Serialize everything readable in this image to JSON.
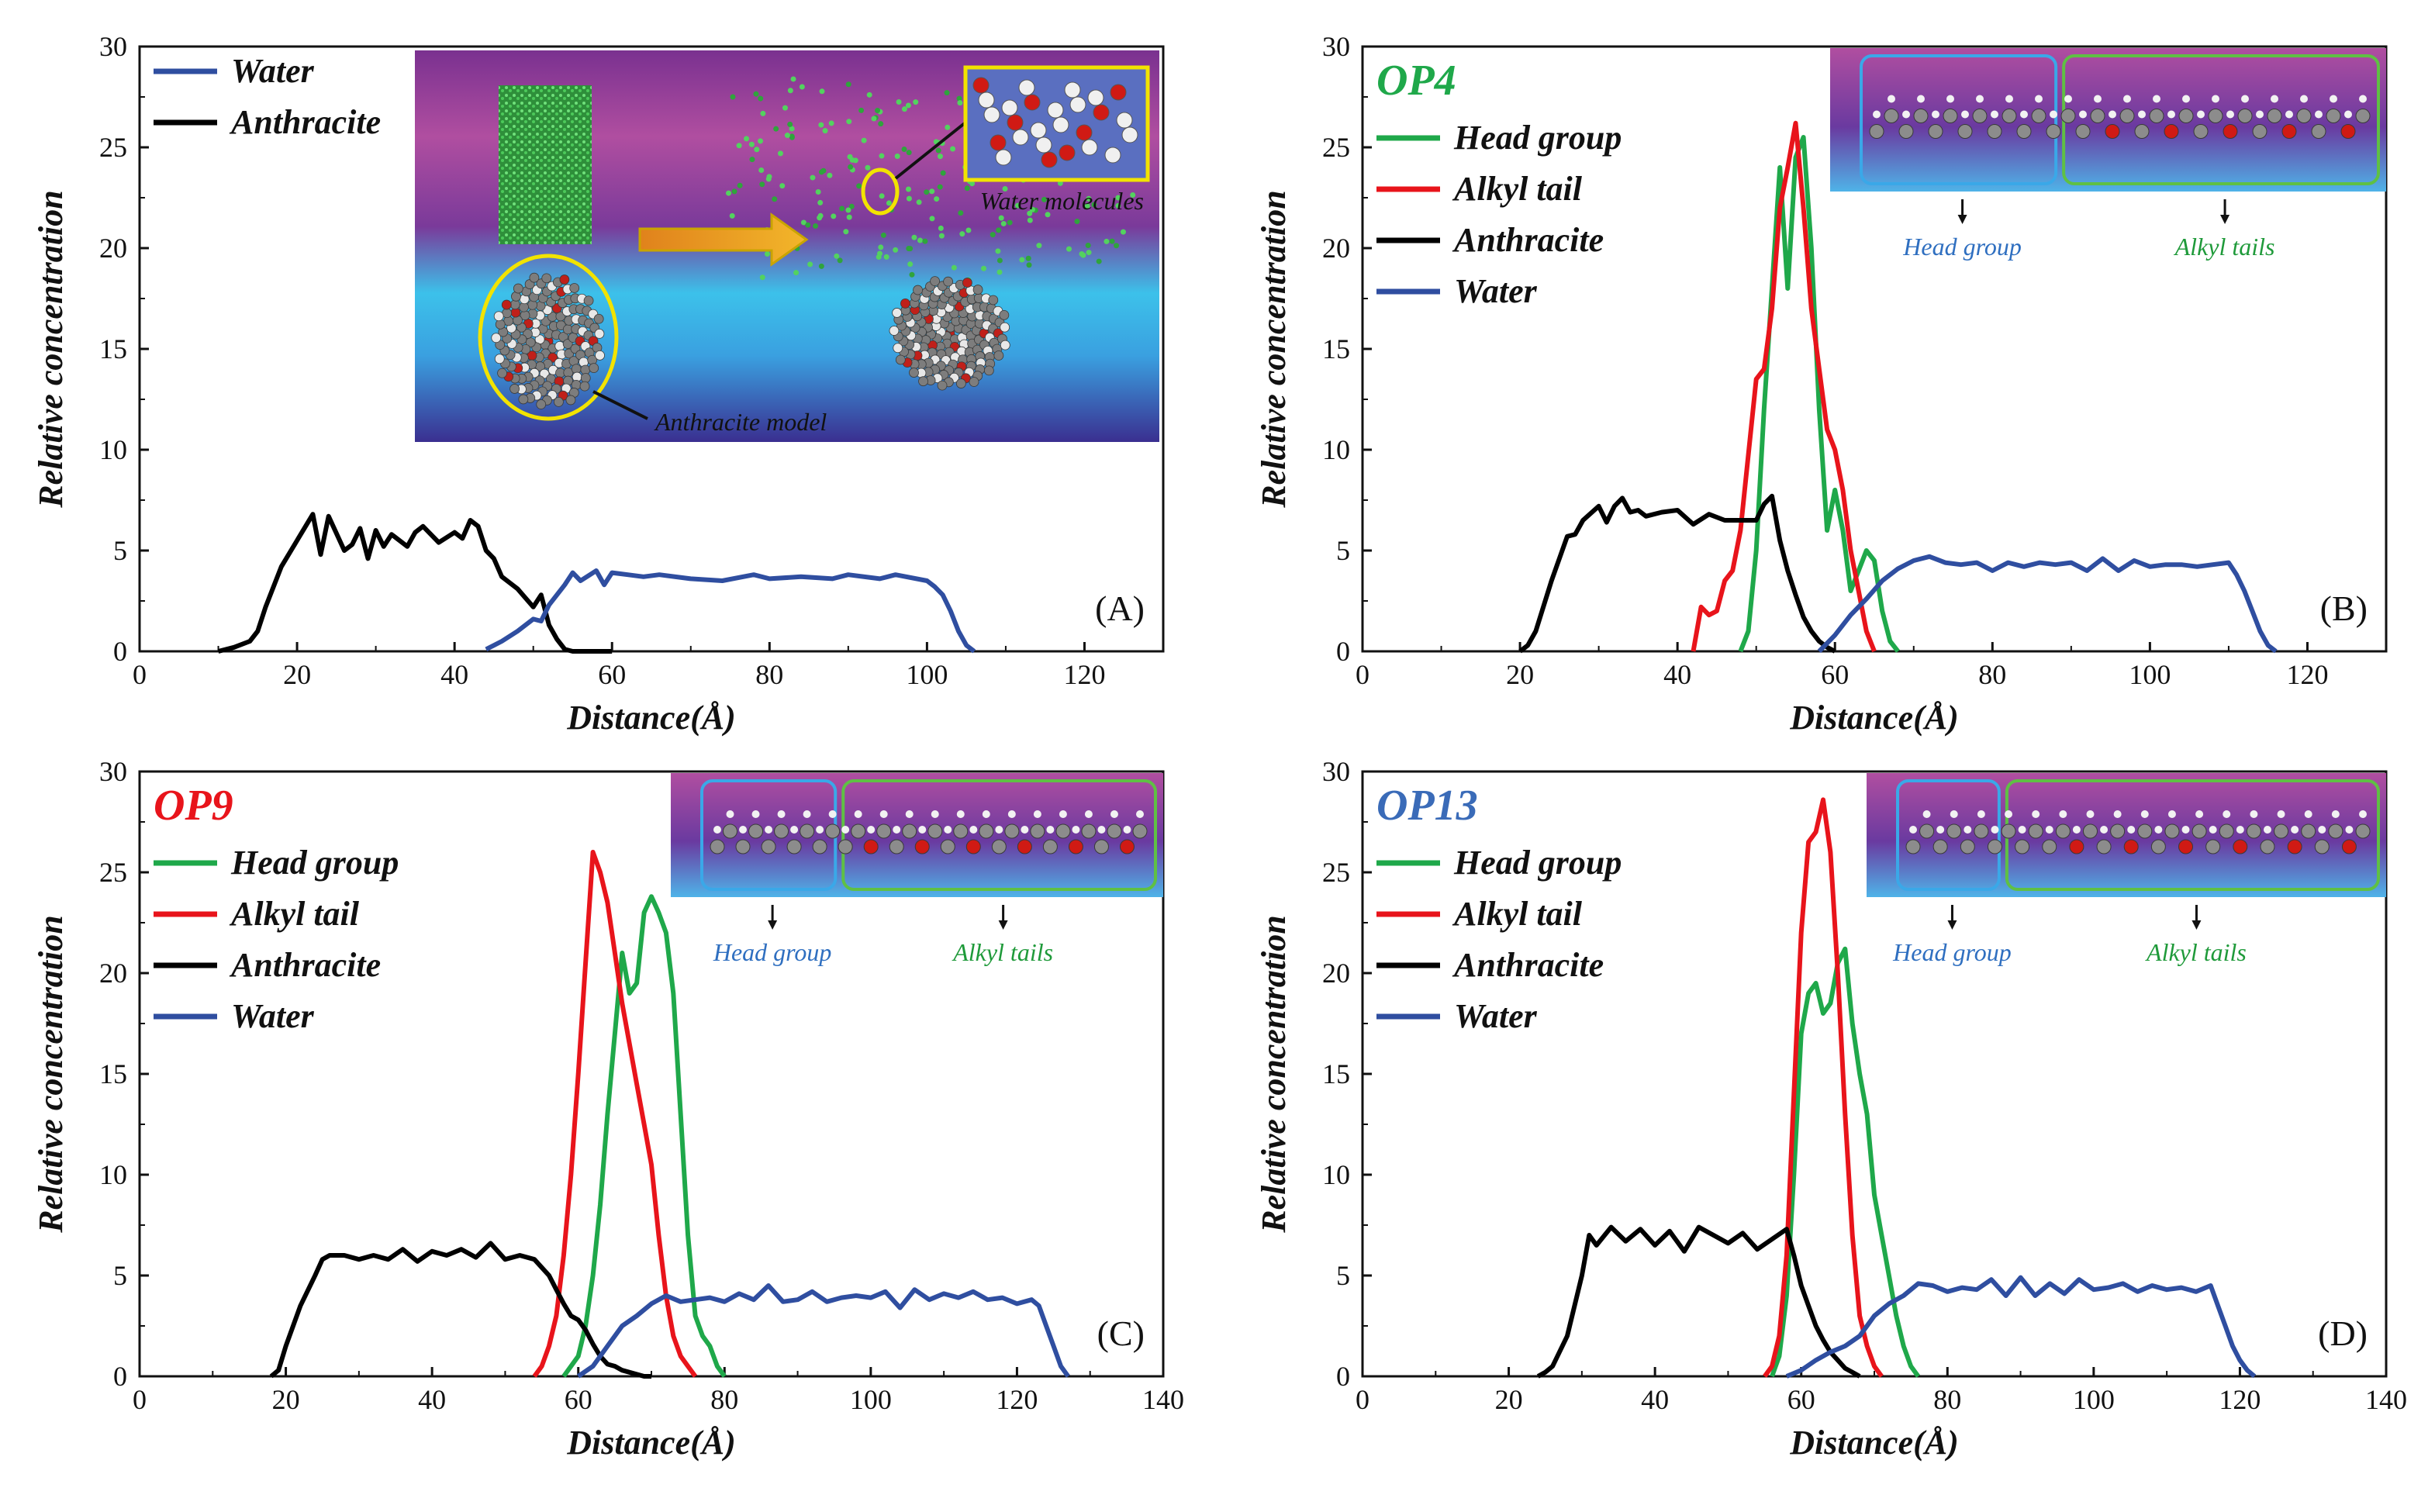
{
  "colors": {
    "water": "#2f4ea0",
    "anthracite": "#000000",
    "head_group": "#1fa84a",
    "alkyl_tail": "#e8141b",
    "op4_title": "#1fa84a",
    "op9_title": "#e8141b",
    "op13_title": "#3a6bb8",
    "inset_head_label": "#2f6fc0",
    "inset_tail_label": "#1f9a3a"
  },
  "chart_data": [
    {
      "type": "line",
      "panel": "(A)",
      "title": "",
      "xlabel": "Distance(Å)",
      "ylabel": "Relative concentration",
      "xlim": [
        0,
        130
      ],
      "ylim": [
        0,
        30
      ],
      "xticks": [
        0,
        20,
        40,
        60,
        80,
        100,
        120
      ],
      "yticks": [
        0,
        5,
        10,
        15,
        20,
        25,
        30
      ],
      "legend": [
        "Water",
        "Anthracite"
      ],
      "inset": {
        "labels": [
          "Water molecules",
          "Anthracite model"
        ]
      },
      "series": [
        {
          "name": "Anthracite",
          "x": [
            10,
            12,
            14,
            15,
            16,
            18,
            20,
            22,
            23,
            24,
            26,
            27,
            28,
            29,
            30,
            31,
            32,
            34,
            35,
            36,
            38,
            40,
            41,
            42,
            43,
            44,
            45,
            46,
            48,
            50,
            51,
            52,
            53,
            54,
            55,
            56,
            58,
            60
          ],
          "values": [
            0,
            0.2,
            0.5,
            1.0,
            2.2,
            4.2,
            5.5,
            6.8,
            4.8,
            6.7,
            5.0,
            5.3,
            6.1,
            4.6,
            6.0,
            5.2,
            5.8,
            5.2,
            5.9,
            6.2,
            5.4,
            5.9,
            5.6,
            6.5,
            6.2,
            5.0,
            4.6,
            3.7,
            3.1,
            2.2,
            2.8,
            1.3,
            0.6,
            0.1,
            0,
            0,
            0,
            0
          ]
        },
        {
          "name": "Water",
          "x": [
            44,
            46,
            48,
            50,
            51,
            52,
            54,
            55,
            56,
            58,
            59,
            60,
            62,
            64,
            66,
            70,
            74,
            78,
            80,
            84,
            88,
            90,
            94,
            96,
            100,
            101,
            102,
            103,
            104,
            105,
            106
          ],
          "values": [
            0.1,
            0.5,
            1.0,
            1.6,
            1.5,
            2.3,
            3.3,
            3.9,
            3.5,
            4.0,
            3.3,
            3.9,
            3.8,
            3.7,
            3.8,
            3.6,
            3.5,
            3.8,
            3.6,
            3.7,
            3.6,
            3.8,
            3.6,
            3.8,
            3.5,
            3.2,
            2.8,
            2.0,
            1.0,
            0.3,
            0
          ]
        }
      ]
    },
    {
      "type": "line",
      "panel": "(B)",
      "title": "OP4",
      "xlabel": "Distance(Å)",
      "ylabel": "Relative concentration",
      "xlim": [
        0,
        130
      ],
      "ylim": [
        0,
        30
      ],
      "xticks": [
        0,
        20,
        40,
        60,
        80,
        100,
        120
      ],
      "yticks": [
        0,
        5,
        10,
        15,
        20,
        25,
        30
      ],
      "legend": [
        "Head group",
        "Alkyl tail",
        "Anthracite",
        "Water"
      ],
      "inset": {
        "labels": [
          "Head group",
          "Alkyl tails"
        ]
      },
      "series": [
        {
          "name": "Head group",
          "x": [
            48,
            49,
            50,
            51,
            52,
            53,
            54,
            55,
            56,
            57,
            58,
            59,
            60,
            61,
            62,
            63,
            64,
            65,
            66,
            67,
            68
          ],
          "values": [
            0,
            1.0,
            5.0,
            12.0,
            18.0,
            24.0,
            18.0,
            24.5,
            25.5,
            20.0,
            12.0,
            6.0,
            8.0,
            6.0,
            3.0,
            4.0,
            5.0,
            4.5,
            2.0,
            0.5,
            0
          ]
        },
        {
          "name": "Alkyl tail",
          "x": [
            42,
            43,
            44,
            45,
            46,
            47,
            48,
            50,
            51,
            52,
            53,
            54,
            55,
            56,
            57,
            58,
            59,
            60,
            61,
            62,
            63,
            64,
            65
          ],
          "values": [
            0,
            2.2,
            1.8,
            2.0,
            3.5,
            4.0,
            6.0,
            13.5,
            14.0,
            17.0,
            22.0,
            24.0,
            26.2,
            22.0,
            17.0,
            14.0,
            11.0,
            10.0,
            8.0,
            5.0,
            3.0,
            1.0,
            0
          ]
        },
        {
          "name": "Anthracite",
          "x": [
            20,
            21,
            22,
            24,
            26,
            27,
            28,
            30,
            31,
            32,
            33,
            34,
            35,
            36,
            38,
            40,
            42,
            44,
            46,
            48,
            50,
            51,
            52,
            53,
            54,
            55,
            56,
            57,
            58,
            59,
            60
          ],
          "values": [
            0,
            0.3,
            1.0,
            3.5,
            5.7,
            5.8,
            6.5,
            7.2,
            6.4,
            7.2,
            7.6,
            6.9,
            7.0,
            6.7,
            6.9,
            7.0,
            6.3,
            6.8,
            6.5,
            6.5,
            6.5,
            7.3,
            7.7,
            5.5,
            4.0,
            2.8,
            1.7,
            1.0,
            0.5,
            0.2,
            0
          ]
        },
        {
          "name": "Water",
          "x": [
            58,
            60,
            62,
            64,
            66,
            68,
            70,
            72,
            74,
            76,
            78,
            80,
            82,
            84,
            86,
            88,
            90,
            92,
            94,
            96,
            98,
            100,
            102,
            104,
            106,
            108,
            110,
            111,
            112,
            113,
            114,
            115,
            116
          ],
          "values": [
            0,
            0.8,
            1.8,
            2.6,
            3.5,
            4.1,
            4.5,
            4.7,
            4.4,
            4.3,
            4.4,
            4.0,
            4.4,
            4.2,
            4.4,
            4.3,
            4.4,
            4.0,
            4.6,
            4.0,
            4.5,
            4.2,
            4.3,
            4.3,
            4.2,
            4.3,
            4.4,
            3.8,
            3.0,
            2.0,
            1.0,
            0.3,
            0
          ]
        }
      ]
    },
    {
      "type": "line",
      "panel": "(C)",
      "title": "OP9",
      "xlabel": "Distance(Å)",
      "ylabel": "Relative concentration",
      "xlim": [
        0,
        140
      ],
      "ylim": [
        0,
        30
      ],
      "xticks": [
        0,
        20,
        40,
        60,
        80,
        100,
        120,
        140
      ],
      "yticks": [
        0,
        5,
        10,
        15,
        20,
        25,
        30
      ],
      "legend": [
        "Head group",
        "Alkyl tail",
        "Anthracite",
        "Water"
      ],
      "inset": {
        "labels": [
          "Head group",
          "Alkyl tails"
        ]
      },
      "series": [
        {
          "name": "Head group",
          "x": [
            58,
            59,
            60,
            61,
            62,
            63,
            64,
            65,
            66,
            67,
            68,
            69,
            70,
            71,
            72,
            73,
            74,
            75,
            76,
            77,
            78,
            79,
            80
          ],
          "values": [
            0,
            0.5,
            1.0,
            2.5,
            5.0,
            8.5,
            13.0,
            17.0,
            21.0,
            19.0,
            19.5,
            23.0,
            23.8,
            23.0,
            22.0,
            19.0,
            13.0,
            7.0,
            3.0,
            2.0,
            1.5,
            0.5,
            0
          ]
        },
        {
          "name": "Alkyl tail",
          "x": [
            54,
            55,
            56,
            57,
            58,
            59,
            60,
            61,
            62,
            63,
            64,
            65,
            66,
            67,
            68,
            69,
            70,
            71,
            72,
            73,
            74,
            75,
            76
          ],
          "values": [
            0,
            0.5,
            1.5,
            3.0,
            6.0,
            10.0,
            15.0,
            20.5,
            26.0,
            25.0,
            23.5,
            21.0,
            18.5,
            16.5,
            14.5,
            12.5,
            10.5,
            7.0,
            4.0,
            2.0,
            1.0,
            0.5,
            0
          ]
        },
        {
          "name": "Anthracite",
          "x": [
            18,
            19,
            20,
            22,
            24,
            25,
            26,
            28,
            30,
            32,
            34,
            36,
            38,
            40,
            42,
            44,
            46,
            48,
            50,
            52,
            54,
            56,
            57,
            58,
            59,
            60,
            61,
            62,
            63,
            64,
            65,
            66,
            67,
            68,
            69,
            70
          ],
          "values": [
            0,
            0.3,
            1.5,
            3.5,
            5.0,
            5.8,
            6.0,
            6.0,
            5.8,
            6.0,
            5.8,
            6.3,
            5.7,
            6.2,
            6.0,
            6.3,
            5.9,
            6.6,
            5.8,
            6.0,
            5.8,
            5.0,
            4.3,
            3.6,
            3.0,
            2.8,
            2.3,
            1.6,
            1.0,
            0.6,
            0.5,
            0.3,
            0.2,
            0.1,
            0,
            0
          ]
        },
        {
          "name": "Water",
          "x": [
            60,
            62,
            64,
            66,
            68,
            70,
            72,
            74,
            76,
            78,
            80,
            82,
            84,
            86,
            88,
            90,
            92,
            94,
            96,
            98,
            100,
            102,
            104,
            106,
            108,
            110,
            112,
            114,
            116,
            118,
            120,
            122,
            123,
            124,
            125,
            126,
            127
          ],
          "values": [
            0,
            0.5,
            1.5,
            2.5,
            3.0,
            3.6,
            4.0,
            3.7,
            3.8,
            3.9,
            3.7,
            4.1,
            3.8,
            4.5,
            3.7,
            3.8,
            4.2,
            3.7,
            3.9,
            4.0,
            3.9,
            4.2,
            3.4,
            4.3,
            3.8,
            4.1,
            3.9,
            4.2,
            3.8,
            3.9,
            3.6,
            3.8,
            3.5,
            2.5,
            1.5,
            0.5,
            0
          ]
        }
      ]
    },
    {
      "type": "line",
      "panel": "(D)",
      "title": "OP13",
      "xlabel": "Distance(Å)",
      "ylabel": "Relative concentration",
      "xlim": [
        0,
        140
      ],
      "ylim": [
        0,
        30
      ],
      "xticks": [
        0,
        20,
        40,
        60,
        80,
        100,
        120,
        140
      ],
      "yticks": [
        0,
        5,
        10,
        15,
        20,
        25,
        30
      ],
      "legend": [
        "Head group",
        "Alkyl tail",
        "Anthracite",
        "Water"
      ],
      "inset": {
        "labels": [
          "Head group",
          "Alkyl tails"
        ]
      },
      "series": [
        {
          "name": "Head group",
          "x": [
            56,
            57,
            58,
            59,
            60,
            61,
            62,
            63,
            64,
            65,
            66,
            67,
            68,
            69,
            70,
            71,
            72,
            73,
            74,
            75,
            76
          ],
          "values": [
            0,
            1.0,
            4.0,
            10.0,
            17.0,
            19.0,
            19.5,
            18.0,
            18.5,
            20.5,
            21.2,
            17.5,
            15.0,
            13.0,
            9.0,
            7.0,
            5.0,
            3.0,
            1.5,
            0.5,
            0
          ]
        },
        {
          "name": "Alkyl tail",
          "x": [
            55,
            56,
            57,
            58,
            59,
            60,
            61,
            62,
            63,
            64,
            65,
            66,
            67,
            68,
            69,
            70,
            71
          ],
          "values": [
            0,
            0.5,
            2.0,
            6.0,
            14.0,
            22.0,
            26.5,
            27.0,
            28.6,
            26.0,
            20.0,
            13.0,
            7.0,
            3.0,
            1.5,
            0.5,
            0
          ]
        },
        {
          "name": "Anthracite",
          "x": [
            24,
            25,
            26,
            28,
            30,
            31,
            32,
            34,
            36,
            38,
            40,
            42,
            44,
            46,
            48,
            50,
            52,
            54,
            56,
            58,
            59,
            60,
            61,
            62,
            63,
            64,
            65,
            66,
            67,
            68
          ],
          "values": [
            0,
            0.2,
            0.5,
            2.0,
            5.0,
            7.0,
            6.5,
            7.4,
            6.7,
            7.3,
            6.5,
            7.2,
            6.2,
            7.4,
            7.0,
            6.6,
            7.1,
            6.3,
            6.8,
            7.3,
            6.0,
            4.5,
            3.5,
            2.5,
            1.8,
            1.2,
            0.8,
            0.4,
            0.2,
            0
          ]
        },
        {
          "name": "Water",
          "x": [
            58,
            60,
            62,
            64,
            66,
            68,
            70,
            72,
            74,
            76,
            78,
            80,
            82,
            84,
            86,
            88,
            90,
            92,
            94,
            96,
            98,
            100,
            102,
            104,
            106,
            108,
            110,
            112,
            114,
            116,
            117,
            118,
            119,
            120,
            121,
            122
          ],
          "values": [
            0,
            0.3,
            0.8,
            1.2,
            1.5,
            2.0,
            3.0,
            3.6,
            4.0,
            4.6,
            4.5,
            4.2,
            4.4,
            4.3,
            4.8,
            4.0,
            4.9,
            4.0,
            4.6,
            4.1,
            4.8,
            4.3,
            4.4,
            4.6,
            4.2,
            4.5,
            4.3,
            4.4,
            4.2,
            4.5,
            3.5,
            2.5,
            1.5,
            0.8,
            0.3,
            0
          ]
        }
      ]
    }
  ]
}
